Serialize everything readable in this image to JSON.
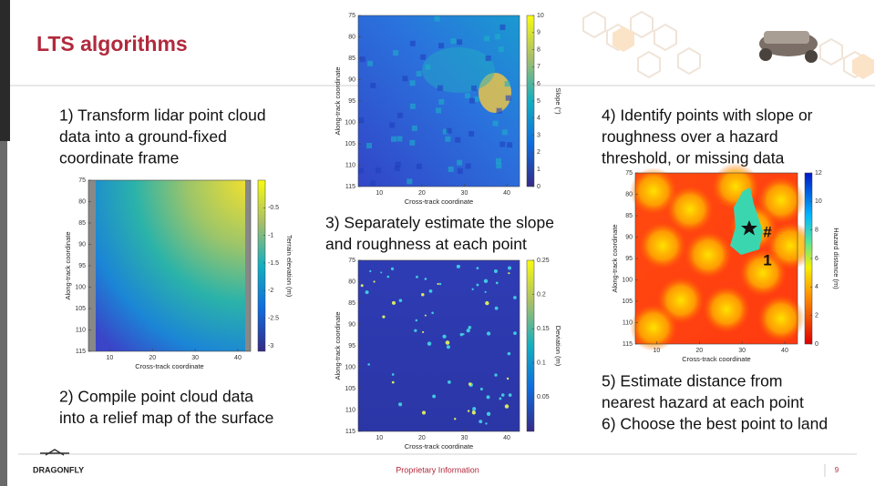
{
  "header": {
    "title": "LTS algorithms"
  },
  "steps": [
    {
      "lines": [
        "1) Transform lidar point cloud",
        "data into a ground-fixed",
        "coordinate frame"
      ]
    },
    {
      "lines": [
        "2) Compile point cloud data",
        "into a relief map of the surface"
      ]
    },
    {
      "lines": [
        "3) Separately estimate the slope",
        "and roughness at each point"
      ]
    },
    {
      "lines": [
        "4) Identify points with slope or",
        "roughness over a hazard",
        "threshold, or missing data"
      ]
    },
    {
      "lines": [
        "5) Estimate distance from",
        "nearest hazard at each point"
      ]
    },
    {
      "lines": [
        "6) Choose the best point to land"
      ]
    }
  ],
  "plots": [
    {
      "xlabel": "Cross-track coordinate",
      "ylabel": "Along-track coordinate",
      "clabel": "Terrain elevation (m)",
      "xlim": [
        5,
        43
      ],
      "ylim": [
        75,
        115
      ],
      "xticks": [
        10,
        20,
        30,
        40
      ],
      "yticks": [
        75,
        80,
        85,
        90,
        95,
        100,
        105,
        110,
        115
      ],
      "clim": [
        -3.1,
        0
      ],
      "cticks": [
        -0.5,
        -1,
        -1.5,
        -2,
        -2.5,
        -3
      ]
    },
    {
      "xlabel": "Cross-track coordinate",
      "ylabel": "Along-track coordinate",
      "clabel": "Slope (°)",
      "xlim": [
        5,
        43
      ],
      "ylim": [
        75,
        115
      ],
      "xticks": [
        10,
        20,
        30,
        40
      ],
      "yticks": [
        75,
        80,
        85,
        90,
        95,
        100,
        105,
        110,
        115
      ],
      "clim": [
        0,
        10
      ],
      "cticks": [
        0,
        1,
        2,
        3,
        4,
        5,
        6,
        7,
        8,
        9,
        10
      ]
    },
    {
      "xlabel": "Cross-track coordinate",
      "ylabel": "Along-track coordinate",
      "clabel": "Deviation (m)",
      "xlim": [
        5,
        43
      ],
      "ylim": [
        75,
        115
      ],
      "xticks": [
        10,
        20,
        30,
        40
      ],
      "yticks": [
        75,
        80,
        85,
        90,
        95,
        100,
        105,
        110,
        115
      ],
      "clim": [
        0,
        0.25
      ],
      "cticks": [
        0.05,
        0.1,
        0.15,
        0.2,
        0.25
      ]
    },
    {
      "xlabel": "Cross-track coordinate",
      "ylabel": "Along-track coordinate",
      "clabel": "Hazard distance (m)",
      "xlim": [
        5,
        43
      ],
      "ylim": [
        75,
        115
      ],
      "xticks": [
        10,
        20,
        30,
        40
      ],
      "yticks": [
        75,
        80,
        85,
        90,
        95,
        100,
        105,
        110,
        115
      ],
      "clim": [
        0,
        12
      ],
      "cticks": [
        0,
        2,
        4,
        6,
        8,
        10,
        12
      ],
      "annotation": [
        "#",
        "1"
      ]
    }
  ],
  "footer": {
    "logo": "DRAGONFLY",
    "center": "Proprietary Information",
    "page": "9"
  }
}
